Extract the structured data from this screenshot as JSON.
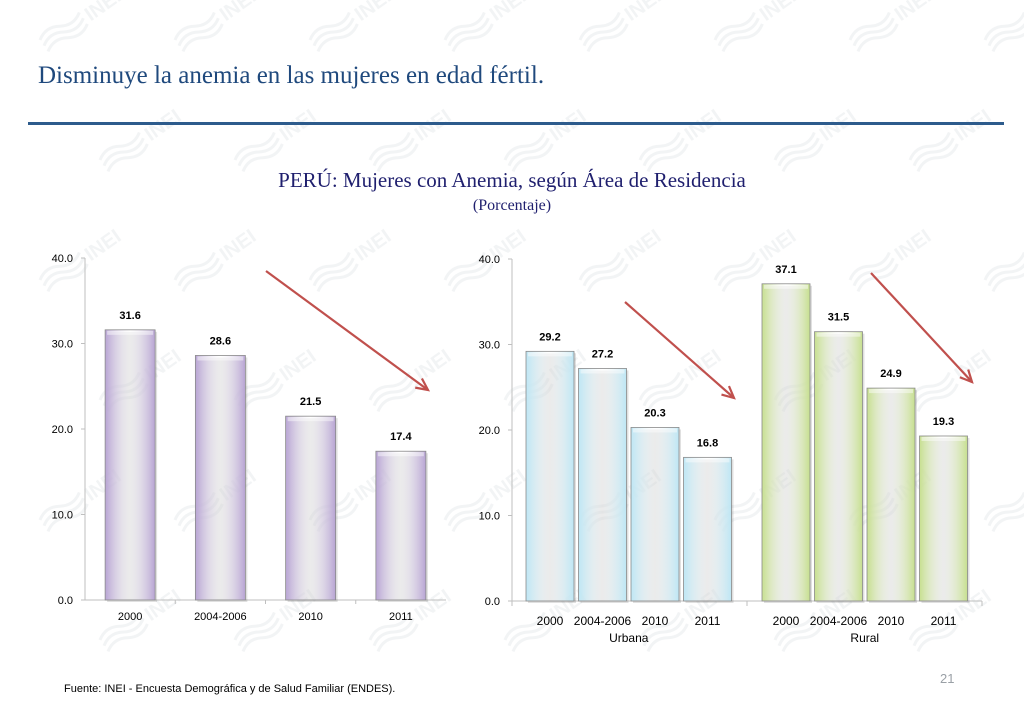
{
  "slide": {
    "title": "Disminuye la anemia en las mujeres en edad fértil.",
    "chart_title": "PERÚ:   Mujeres  con  Anemia, según Área de Residencia",
    "chart_subtitle": "(Porcentaje)",
    "source": "Fuente: INEI - Encuesta Demográfica y de Salud Familiar (ENDES).",
    "page_number": "21",
    "watermark_text": "INEI"
  },
  "colors": {
    "title": "#1f497d",
    "rule": "#2d5b8c",
    "chart_title": "#1f1f6e",
    "national_bar": "#b7a3d3",
    "urban_bar": "#bde6f4",
    "rural_bar": "#c6df8e",
    "arrow": "#c0504d"
  },
  "chart_data": [
    {
      "type": "bar",
      "categories": [
        "2000",
        "2004-2006",
        "2010",
        "2011"
      ],
      "values": [
        31.6,
        28.6,
        21.5,
        17.4
      ],
      "value_labels": [
        "31.6",
        "28.6",
        "21.5",
        "17.4"
      ],
      "ylim": [
        0,
        40
      ],
      "yticks": [
        "0.0",
        "10.0",
        "20.0",
        "30.0",
        "40.0"
      ],
      "title": "",
      "xlabel": "",
      "ylabel": "",
      "grid": false,
      "annotations": [
        "downward trend arrow"
      ]
    },
    {
      "type": "bar",
      "ylim": [
        0,
        40
      ],
      "yticks": [
        "0.0",
        "10.0",
        "20.0",
        "30.0",
        "40.0"
      ],
      "title": "",
      "xlabel": "",
      "ylabel": "",
      "grid": false,
      "groups": [
        {
          "name": "Urbana",
          "categories": [
            "2000",
            "2004-2006",
            "2010",
            "2011"
          ],
          "values": [
            29.2,
            27.2,
            20.3,
            16.8
          ],
          "value_labels": [
            "29.2",
            "27.2",
            "20.3",
            "16.8"
          ]
        },
        {
          "name": "Rural",
          "categories": [
            "2000",
            "2004-2006",
            "2010",
            "2011"
          ],
          "values": [
            37.1,
            31.5,
            24.9,
            19.3
          ],
          "value_labels": [
            "37.1",
            "31.5",
            "24.9",
            "19.3"
          ]
        }
      ],
      "annotations": [
        "downward trend arrow (Urbana)",
        "downward trend arrow (Rural)"
      ]
    }
  ]
}
